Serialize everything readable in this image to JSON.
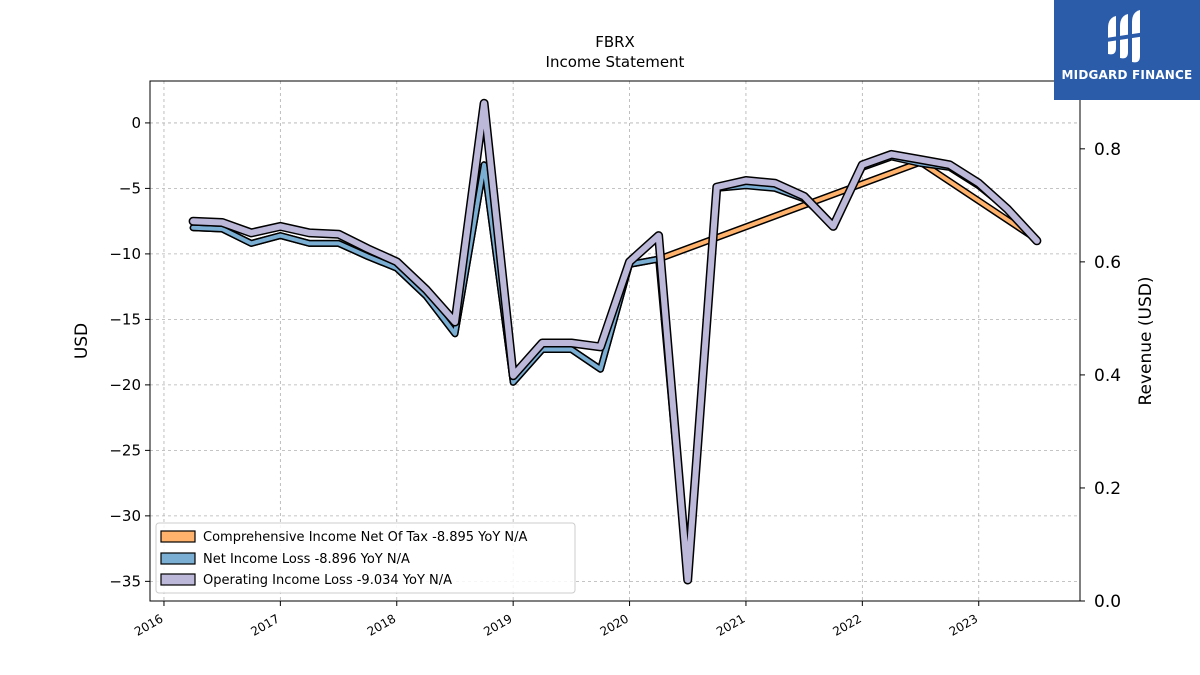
{
  "chart_data": {
    "type": "line",
    "title": "FBRX",
    "subtitle": "Income Statement",
    "ylabel": "USD",
    "y2label": "Revenue (USD)",
    "ylim": [
      -36.5,
      3.2
    ],
    "y2lim": [
      0,
      0.92
    ],
    "yticks": [
      0,
      -5,
      -10,
      -15,
      -20,
      -25,
      -30,
      -35
    ],
    "ytick_labels": [
      "0",
      "−5",
      "−10",
      "−15",
      "−20",
      "−25",
      "−30",
      "−35"
    ],
    "y2ticks": [
      0.0,
      0.2,
      0.4,
      0.6,
      0.8
    ],
    "y2tick_labels": [
      "0.0",
      "0.2",
      "0.4",
      "0.6",
      "0.8"
    ],
    "xlim": [
      2015.88,
      2023.87
    ],
    "xticks": [
      2016,
      2017,
      2018,
      2019,
      2020,
      2021,
      2022,
      2023
    ],
    "xtick_labels": [
      "2016",
      "2017",
      "2018",
      "2019",
      "2020",
      "2021",
      "2022",
      "2023"
    ],
    "grid": true,
    "legend_position": "lower-left",
    "series": [
      {
        "name": "Comprehensive Income Net Of Tax",
        "legend_label": "Comprehensive Income Net Of Tax  -8.895 YoY N/A",
        "color": "#ffb26b",
        "x": [
          2016.25,
          2016.5,
          2016.75,
          2017.0,
          2017.25,
          2017.5,
          2017.75,
          2018.0,
          2018.25,
          2018.5,
          2018.75,
          2019.0,
          2019.25,
          2019.5,
          2019.75,
          2020.0,
          2020.25,
          2022.5,
          2023.5
        ],
        "y": [
          -8.0,
          -8.1,
          -9.2,
          -8.6,
          -9.2,
          -9.2,
          -10.2,
          -11.1,
          -13.2,
          -16.1,
          -3.2,
          -19.8,
          -17.3,
          -17.3,
          -18.8,
          -10.8,
          -10.4,
          -3.0,
          -8.9
        ]
      },
      {
        "name": "Net Income Loss",
        "legend_label": "Net Income Loss  -8.896 YoY N/A",
        "color": "#7aaed3",
        "x": [
          2016.25,
          2016.5,
          2016.75,
          2017.0,
          2017.25,
          2017.5,
          2017.75,
          2018.0,
          2018.25,
          2018.5,
          2018.75,
          2019.0,
          2019.25,
          2019.5,
          2019.75,
          2020.0,
          2020.25,
          2020.5,
          2020.75,
          2021.0,
          2021.25,
          2021.5,
          2021.75,
          2022.0,
          2022.25,
          2022.5,
          2022.75,
          2023.0,
          2023.25,
          2023.5
        ],
        "y": [
          -8.0,
          -8.1,
          -9.2,
          -8.6,
          -9.2,
          -9.2,
          -10.2,
          -11.1,
          -13.2,
          -16.1,
          -3.2,
          -19.8,
          -17.3,
          -17.3,
          -18.8,
          -10.8,
          -10.4,
          -34.9,
          -5.0,
          -4.8,
          -5.0,
          -5.8,
          -7.8,
          -3.4,
          -2.6,
          -3.1,
          -3.4,
          -4.8,
          -6.6,
          -8.9
        ]
      },
      {
        "name": "Operating Income Loss",
        "legend_label": "Operating Income Loss  -9.034 YoY N/A",
        "color": "#bcb8d9",
        "x": [
          2016.25,
          2016.5,
          2016.75,
          2017.0,
          2017.25,
          2017.5,
          2017.75,
          2018.0,
          2018.25,
          2018.5,
          2018.75,
          2019.0,
          2019.25,
          2019.5,
          2019.75,
          2020.0,
          2020.25,
          2020.5,
          2020.75,
          2021.0,
          2021.25,
          2021.5,
          2021.75,
          2022.0,
          2022.25,
          2022.5,
          2022.75,
          2023.0,
          2023.25,
          2023.5
        ],
        "y": [
          -7.5,
          -7.6,
          -8.4,
          -7.9,
          -8.4,
          -8.5,
          -9.6,
          -10.6,
          -12.7,
          -15.2,
          1.5,
          -19.3,
          -16.8,
          -16.8,
          -17.1,
          -10.6,
          -8.6,
          -34.9,
          -4.9,
          -4.4,
          -4.6,
          -5.6,
          -7.9,
          -3.2,
          -2.4,
          -2.8,
          -3.2,
          -4.6,
          -6.6,
          -9.0
        ]
      }
    ]
  },
  "logo": {
    "text": "MIDGARD FINANCE",
    "bg_color": "#2a5caa"
  }
}
